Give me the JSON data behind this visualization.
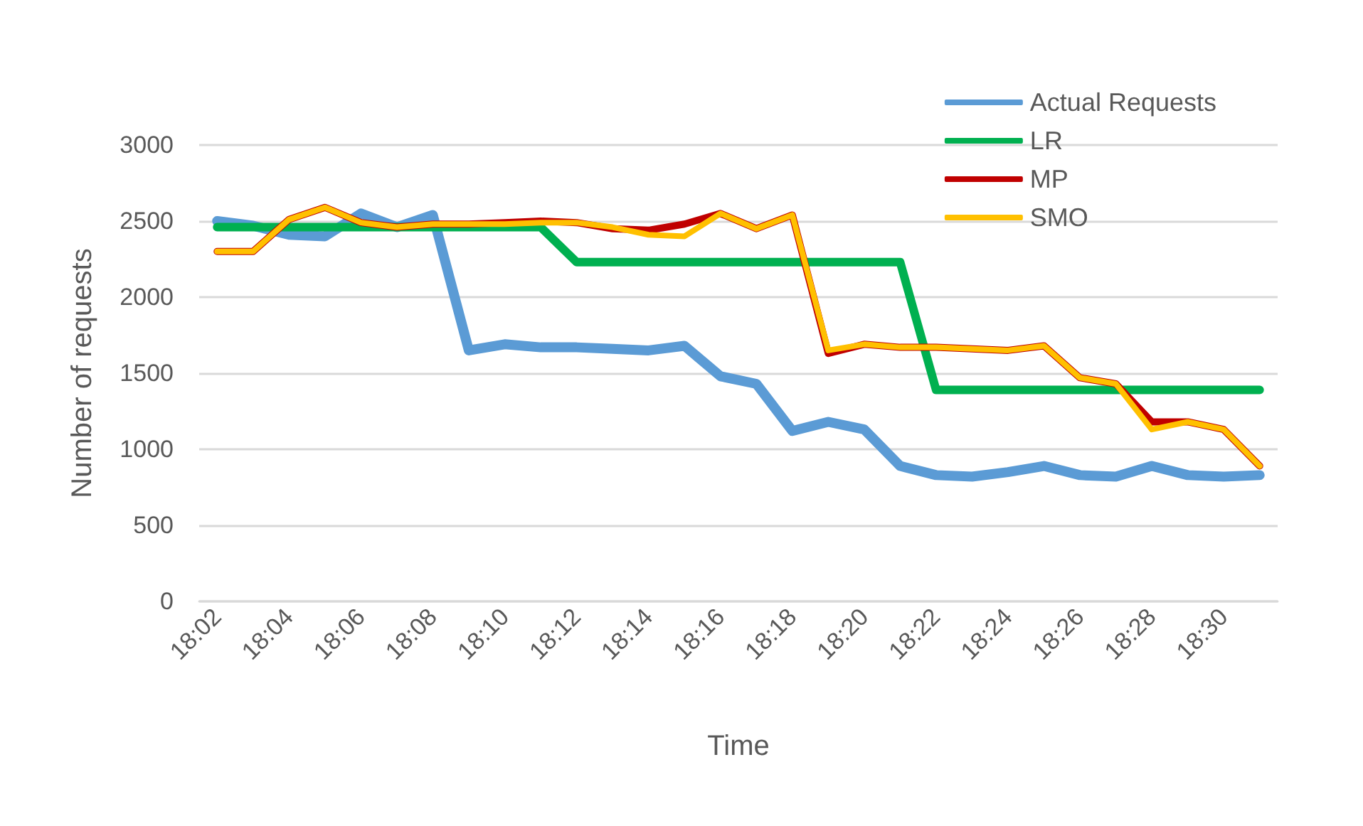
{
  "chart_data": {
    "type": "line",
    "xlabel": "Time",
    "ylabel": "Number of requests",
    "categories": [
      "18:02",
      null,
      "18:04",
      null,
      "18:06",
      null,
      "18:08",
      null,
      "18:10",
      null,
      "18:12",
      null,
      "18:14",
      null,
      "18:16",
      null,
      "18:18",
      null,
      "18:20",
      null,
      "18:22",
      null,
      "18:24",
      null,
      "18:26",
      null,
      "18:28",
      null,
      "18:30",
      null
    ],
    "series": [
      {
        "name": "Actual Requests",
        "color": "#5b9bd5",
        "values": [
          2500,
          2470,
          2410,
          2400,
          2550,
          2460,
          2540,
          1650,
          1690,
          1670,
          1670,
          1660,
          1650,
          1680,
          1480,
          1430,
          1120,
          1180,
          1130,
          890,
          830,
          820,
          850,
          890,
          830,
          820,
          890,
          830,
          820,
          830
        ]
      },
      {
        "name": "LR",
        "color": "#00b050",
        "values": [
          2460,
          2460,
          2460,
          2460,
          2460,
          2460,
          2460,
          2460,
          2460,
          2460,
          2230,
          2230,
          2230,
          2230,
          2230,
          2230,
          2230,
          2230,
          2230,
          2230,
          1390,
          1390,
          1390,
          1390,
          1390,
          1390,
          1390,
          1390,
          1390,
          1390
        ]
      },
      {
        "name": "MP",
        "color": "#c00000",
        "values": [
          2300,
          2300,
          2510,
          2590,
          2490,
          2460,
          2480,
          2480,
          2490,
          2500,
          2490,
          2450,
          2440,
          2480,
          2550,
          2450,
          2540,
          1630,
          1690,
          1670,
          1670,
          1660,
          1650,
          1680,
          1470,
          1430,
          1180,
          1180,
          1130,
          890
        ]
      },
      {
        "name": "SMO",
        "color": "#ffc000",
        "values": [
          2300,
          2300,
          2510,
          2590,
          2490,
          2460,
          2480,
          2480,
          2480,
          2490,
          2490,
          2460,
          2410,
          2400,
          2550,
          2450,
          2540,
          1650,
          1690,
          1670,
          1670,
          1660,
          1650,
          1680,
          1470,
          1430,
          1130,
          1180,
          1130,
          890
        ]
      }
    ],
    "ylim": [
      0,
      3000
    ],
    "yticks": [
      0,
      500,
      1000,
      1500,
      2000,
      2500,
      3000
    ],
    "grid": "y",
    "legend": "top right",
    "marker": "none",
    "line_style": "solid"
  }
}
